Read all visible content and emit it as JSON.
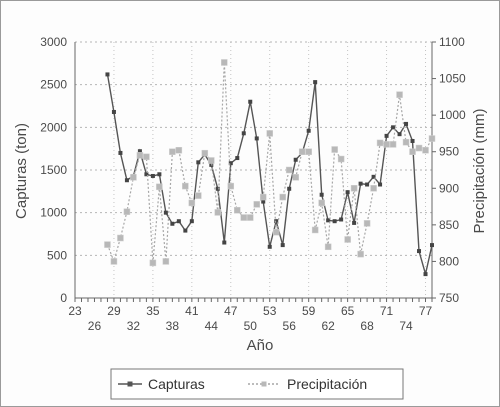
{
  "chart_data": {
    "type": "line",
    "xlabel": "Año",
    "ylabel_left": "Capturas (ton)",
    "ylabel_right": "Precipitación (mm)",
    "x_range": [
      23,
      78
    ],
    "x_tick_labels_top": [
      "23",
      "29",
      "35",
      "41",
      "47",
      "53",
      "59",
      "65",
      "71",
      "77"
    ],
    "x_tick_labels_bottom": [
      "26",
      "32",
      "38",
      "44",
      "50",
      "56",
      "62",
      "68",
      "74"
    ],
    "ylim_left": [
      0,
      3000
    ],
    "yticks_left": [
      "0",
      "500",
      "1000",
      "1500",
      "2000",
      "2500",
      "3000"
    ],
    "ylim_right": [
      750,
      1100
    ],
    "yticks_right": [
      "750",
      "800",
      "850",
      "900",
      "950",
      "1000",
      "1050",
      "1100"
    ],
    "grid": true,
    "legend_position": "bottom",
    "series": [
      {
        "name": "Capturas",
        "axis": "left",
        "color": "#555555",
        "style": "solid",
        "x": [
          28,
          29,
          30,
          31,
          32,
          33,
          34,
          35,
          36,
          37,
          38,
          39,
          40,
          41,
          42,
          43,
          44,
          45,
          46,
          47,
          48,
          49,
          50,
          51,
          52,
          53,
          54,
          55,
          56,
          57,
          58,
          59,
          60,
          61,
          62,
          63,
          64,
          65,
          66,
          67,
          68,
          69,
          70,
          71,
          72,
          73,
          74,
          75,
          76,
          77,
          78
        ],
        "values": [
          2620,
          2180,
          1700,
          1380,
          1430,
          1720,
          1450,
          1430,
          1450,
          1000,
          870,
          900,
          790,
          900,
          1590,
          1680,
          1560,
          1280,
          650,
          1580,
          1640,
          1930,
          2300,
          1870,
          1130,
          600,
          900,
          620,
          1280,
          1620,
          1700,
          1960,
          2530,
          1210,
          910,
          900,
          920,
          1240,
          880,
          1340,
          1330,
          1420,
          1330,
          1900,
          2000,
          1920,
          2040,
          1840,
          550,
          280,
          620
        ]
      },
      {
        "name": "Precipitación",
        "axis": "right",
        "color": "#a6a6a6",
        "style": "dotted",
        "x": [
          28,
          29,
          30,
          31,
          32,
          33,
          34,
          35,
          36,
          37,
          38,
          39,
          40,
          41,
          42,
          43,
          44,
          45,
          46,
          47,
          48,
          49,
          50,
          51,
          52,
          53,
          54,
          55,
          56,
          57,
          58,
          59,
          60,
          61,
          62,
          63,
          64,
          65,
          66,
          67,
          68,
          69,
          70,
          71,
          72,
          73,
          74,
          75,
          76,
          77,
          78
        ],
        "values": [
          823,
          800,
          832,
          868,
          915,
          945,
          943,
          798,
          902,
          800,
          950,
          952,
          903,
          880,
          890,
          948,
          938,
          867,
          1072,
          903,
          870,
          860,
          860,
          878,
          888,
          975,
          840,
          888,
          925,
          915,
          950,
          950,
          843,
          880,
          820,
          953,
          940,
          830,
          900,
          810,
          852,
          900,
          962,
          960,
          960,
          1028,
          963,
          950,
          955,
          952,
          968
        ]
      }
    ]
  }
}
